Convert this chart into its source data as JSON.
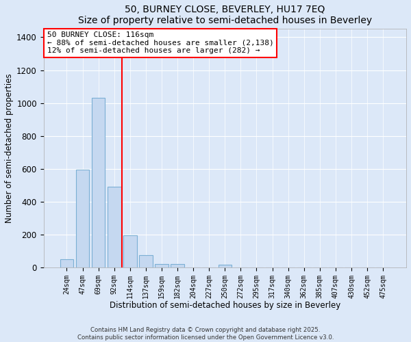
{
  "title": "50, BURNEY CLOSE, BEVERLEY, HU17 7EQ",
  "subtitle": "Size of property relative to semi-detached houses in Beverley",
  "xlabel": "Distribution of semi-detached houses by size in Beverley",
  "ylabel": "Number of semi-detached properties",
  "bar_labels": [
    "24sqm",
    "47sqm",
    "69sqm",
    "92sqm",
    "114sqm",
    "137sqm",
    "159sqm",
    "182sqm",
    "204sqm",
    "227sqm",
    "250sqm",
    "272sqm",
    "295sqm",
    "317sqm",
    "340sqm",
    "362sqm",
    "385sqm",
    "407sqm",
    "430sqm",
    "452sqm",
    "475sqm"
  ],
  "bar_values": [
    50,
    595,
    1030,
    490,
    195,
    75,
    22,
    22,
    0,
    0,
    15,
    0,
    0,
    0,
    0,
    0,
    0,
    0,
    0,
    0,
    0
  ],
  "bar_color": "#c5d8f0",
  "bar_edge_color": "#7bafd4",
  "vline_x": 3.5,
  "vline_color": "red",
  "ylim": [
    0,
    1450
  ],
  "yticks": [
    0,
    200,
    400,
    600,
    800,
    1000,
    1200,
    1400
  ],
  "annotation_title": "50 BURNEY CLOSE: 116sqm",
  "annotation_line1": "← 88% of semi-detached houses are smaller (2,138)",
  "annotation_line2": "12% of semi-detached houses are larger (282) →",
  "annotation_box_color": "#ffffff",
  "annotation_box_edge": "red",
  "footer_line1": "Contains HM Land Registry data © Crown copyright and database right 2025.",
  "footer_line2": "Contains public sector information licensed under the Open Government Licence v3.0.",
  "background_color": "#dce8f8",
  "plot_bg_color": "#dce8f8",
  "grid_color": "#ffffff"
}
